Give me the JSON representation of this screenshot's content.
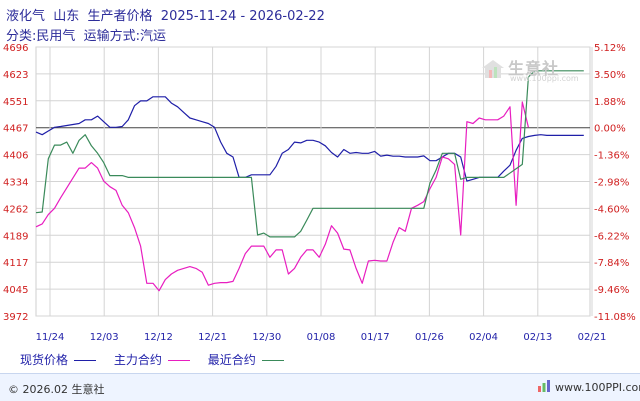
{
  "header": {
    "title": "液化气  山东  生产者价格  2025-11-24 - 2026-02-22",
    "subtitle": "分类:民用气  运输方式:汽运"
  },
  "watermark": {
    "text": "生意社",
    "url": "www.100ppi.com"
  },
  "legend": [
    {
      "label": "现货价格",
      "color": "#1f1fa8"
    },
    {
      "label": "主力合约",
      "color": "#e81ec0"
    },
    {
      "label": "最近合约",
      "color": "#3a8a5a"
    }
  ],
  "footer": {
    "copyright": "© 2026.02 生意社",
    "site": "www.100PPI.com"
  },
  "chart_data": {
    "type": "line",
    "title": "液化气  山东  生产者价格  2025-11-24 - 2026-02-22",
    "subtitle": "分类:民用气  运输方式:汽运",
    "x_ticks": [
      "11/24",
      "12/03",
      "12/12",
      "12/21",
      "12/30",
      "01/08",
      "01/17",
      "01/26",
      "02/04",
      "02/13",
      "02/21"
    ],
    "xlim": [
      "2025-11-24",
      "2026-02-22"
    ],
    "y_ticks": [
      3972,
      4045,
      4117,
      4189,
      4262,
      4334,
      4406,
      4467,
      4551,
      4623,
      4696
    ],
    "ylim": [
      3972,
      4696
    ],
    "y2_ticks": [
      "5.12%",
      "3.50%",
      "1.88%",
      "0.00%",
      "-1.36%",
      "-2.98%",
      "-4.60%",
      "-6.22%",
      "-7.84%",
      "-9.46%",
      "-11.08%"
    ],
    "grid": true,
    "series": [
      {
        "name": "现货价格",
        "color": "#1f1fa8",
        "points": [
          [
            "2025-11-24",
            4467
          ],
          [
            "2025-11-25",
            4460
          ],
          [
            "2025-11-26",
            4470
          ],
          [
            "2025-11-27",
            4480
          ],
          [
            "2025-11-28",
            4482
          ],
          [
            "2025-12-01",
            4490
          ],
          [
            "2025-12-02",
            4500
          ],
          [
            "2025-12-03",
            4500
          ],
          [
            "2025-12-04",
            4510
          ],
          [
            "2025-12-05",
            4495
          ],
          [
            "2025-12-06",
            4480
          ],
          [
            "2025-12-07",
            4480
          ],
          [
            "2025-12-08",
            4482
          ],
          [
            "2025-12-09",
            4500
          ],
          [
            "2025-12-10",
            4538
          ],
          [
            "2025-12-11",
            4551
          ],
          [
            "2025-12-12",
            4551
          ],
          [
            "2025-12-13",
            4562
          ],
          [
            "2025-12-14",
            4562
          ],
          [
            "2025-12-15",
            4562
          ],
          [
            "2025-12-16",
            4545
          ],
          [
            "2025-12-17",
            4535
          ],
          [
            "2025-12-18",
            4520
          ],
          [
            "2025-12-19",
            4505
          ],
          [
            "2025-12-20",
            4500
          ],
          [
            "2025-12-21",
            4495
          ],
          [
            "2025-12-22",
            4490
          ],
          [
            "2025-12-23",
            4480
          ],
          [
            "2025-12-24",
            4440
          ],
          [
            "2025-12-25",
            4410
          ],
          [
            "2025-12-26",
            4400
          ],
          [
            "2025-12-27",
            4345
          ],
          [
            "2025-12-28",
            4345
          ],
          [
            "2025-12-29",
            4352
          ],
          [
            "2025-12-30",
            4352
          ],
          [
            "2025-12-31",
            4352
          ],
          [
            "2026-01-01",
            4352
          ],
          [
            "2026-01-02",
            4375
          ],
          [
            "2026-01-03",
            4410
          ],
          [
            "2026-01-04",
            4420
          ],
          [
            "2026-01-05",
            4440
          ],
          [
            "2026-01-06",
            4438
          ],
          [
            "2026-01-07",
            4445
          ],
          [
            "2026-01-08",
            4445
          ],
          [
            "2026-01-09",
            4440
          ],
          [
            "2026-01-10",
            4430
          ],
          [
            "2026-01-11",
            4412
          ],
          [
            "2026-01-12",
            4400
          ],
          [
            "2026-01-13",
            4420
          ],
          [
            "2026-01-14",
            4410
          ],
          [
            "2026-01-15",
            4412
          ],
          [
            "2026-01-16",
            4410
          ],
          [
            "2026-01-17",
            4410
          ],
          [
            "2026-01-18",
            4415
          ],
          [
            "2026-01-19",
            4402
          ],
          [
            "2026-01-20",
            4405
          ],
          [
            "2026-01-21",
            4402
          ],
          [
            "2026-01-22",
            4402
          ],
          [
            "2026-01-23",
            4400
          ],
          [
            "2026-01-24",
            4400
          ],
          [
            "2026-01-25",
            4400
          ],
          [
            "2026-01-26",
            4403
          ],
          [
            "2026-01-27",
            4390
          ],
          [
            "2026-01-28",
            4390
          ],
          [
            "2026-01-29",
            4400
          ],
          [
            "2026-01-30",
            4410
          ],
          [
            "2026-01-31",
            4410
          ],
          [
            "2026-02-01",
            4400
          ],
          [
            "2026-02-02",
            4335
          ],
          [
            "2026-02-03",
            4340
          ],
          [
            "2026-02-04",
            4345
          ],
          [
            "2026-02-05",
            4345
          ],
          [
            "2026-02-06",
            4345
          ],
          [
            "2026-02-07",
            4345
          ],
          [
            "2026-02-08",
            4362
          ],
          [
            "2026-02-09",
            4378
          ],
          [
            "2026-02-10",
            4418
          ],
          [
            "2026-02-11",
            4450
          ],
          [
            "2026-02-12",
            4455
          ],
          [
            "2026-02-13",
            4458
          ],
          [
            "2026-02-14",
            4460
          ],
          [
            "2026-02-15",
            4458
          ],
          [
            "2026-02-16",
            4458
          ],
          [
            "2026-02-17",
            4458
          ],
          [
            "2026-02-18",
            4458
          ],
          [
            "2026-02-19",
            4458
          ],
          [
            "2026-02-20",
            4458
          ],
          [
            "2026-02-21",
            4458
          ]
        ]
      },
      {
        "name": "主力合约",
        "color": "#e81ec0",
        "points": [
          [
            "2025-11-24",
            4212
          ],
          [
            "2025-11-25",
            4220
          ],
          [
            "2025-11-26",
            4245
          ],
          [
            "2025-11-27",
            4262
          ],
          [
            "2025-11-28",
            4290
          ],
          [
            "2025-12-01",
            4370
          ],
          [
            "2025-12-02",
            4370
          ],
          [
            "2025-12-03",
            4385
          ],
          [
            "2025-12-04",
            4370
          ],
          [
            "2025-12-05",
            4335
          ],
          [
            "2025-12-06",
            4320
          ],
          [
            "2025-12-07",
            4310
          ],
          [
            "2025-12-08",
            4270
          ],
          [
            "2025-12-09",
            4250
          ],
          [
            "2025-12-10",
            4210
          ],
          [
            "2025-12-11",
            4160
          ],
          [
            "2025-12-12",
            4060
          ],
          [
            "2025-12-13",
            4060
          ],
          [
            "2025-12-14",
            4040
          ],
          [
            "2025-12-15",
            4070
          ],
          [
            "2025-12-16",
            4085
          ],
          [
            "2025-12-17",
            4095
          ],
          [
            "2025-12-18",
            4100
          ],
          [
            "2025-12-19",
            4105
          ],
          [
            "2025-12-20",
            4100
          ],
          [
            "2025-12-21",
            4090
          ],
          [
            "2025-12-22",
            4055
          ],
          [
            "2025-12-23",
            4060
          ],
          [
            "2025-12-24",
            4062
          ],
          [
            "2025-12-25",
            4062
          ],
          [
            "2025-12-26",
            4065
          ],
          [
            "2025-12-27",
            4100
          ],
          [
            "2025-12-28",
            4140
          ],
          [
            "2025-12-29",
            4160
          ],
          [
            "2025-12-30",
            4160
          ],
          [
            "2025-12-31",
            4160
          ],
          [
            "2026-01-01",
            4130
          ],
          [
            "2026-01-02",
            4150
          ],
          [
            "2026-01-03",
            4150
          ],
          [
            "2026-01-04",
            4085
          ],
          [
            "2026-01-05",
            4100
          ],
          [
            "2026-01-06",
            4130
          ],
          [
            "2026-01-07",
            4150
          ],
          [
            "2026-01-08",
            4150
          ],
          [
            "2026-01-09",
            4130
          ],
          [
            "2026-01-10",
            4165
          ],
          [
            "2026-01-11",
            4215
          ],
          [
            "2026-01-12",
            4195
          ],
          [
            "2026-01-13",
            4152
          ],
          [
            "2026-01-14",
            4150
          ],
          [
            "2026-01-15",
            4100
          ],
          [
            "2026-01-16",
            4060
          ],
          [
            "2026-01-17",
            4120
          ],
          [
            "2026-01-18",
            4122
          ],
          [
            "2026-01-19",
            4120
          ],
          [
            "2026-01-20",
            4120
          ],
          [
            "2026-01-21",
            4170
          ],
          [
            "2026-01-22",
            4210
          ],
          [
            "2026-01-23",
            4200
          ],
          [
            "2026-01-24",
            4262
          ],
          [
            "2026-01-25",
            4270
          ],
          [
            "2026-01-26",
            4280
          ],
          [
            "2026-01-27",
            4315
          ],
          [
            "2026-01-28",
            4345
          ],
          [
            "2026-01-29",
            4400
          ],
          [
            "2026-01-30",
            4395
          ],
          [
            "2026-01-31",
            4380
          ],
          [
            "2026-02-01",
            4190
          ],
          [
            "2026-02-02",
            4495
          ],
          [
            "2026-02-03",
            4490
          ],
          [
            "2026-02-04",
            4505
          ],
          [
            "2026-02-05",
            4500
          ],
          [
            "2026-02-06",
            4500
          ],
          [
            "2026-02-07",
            4500
          ],
          [
            "2026-02-08",
            4510
          ],
          [
            "2026-02-09",
            4535
          ],
          [
            "2026-02-10",
            4270
          ],
          [
            "2026-02-11",
            4548
          ],
          [
            "2026-02-12",
            4480
          ]
        ]
      },
      {
        "name": "最近合约",
        "color": "#3a8a5a",
        "points": [
          [
            "2025-11-24",
            4250
          ],
          [
            "2025-11-25",
            4252
          ],
          [
            "2025-11-26",
            4395
          ],
          [
            "2025-11-27",
            4432
          ],
          [
            "2025-11-28",
            4432
          ],
          [
            "2025-11-29",
            4440
          ],
          [
            "2025-11-30",
            4410
          ],
          [
            "2025-12-01",
            4445
          ],
          [
            "2025-12-02",
            4460
          ],
          [
            "2025-12-03",
            4430
          ],
          [
            "2025-12-04",
            4410
          ],
          [
            "2025-12-05",
            4385
          ],
          [
            "2025-12-06",
            4350
          ],
          [
            "2025-12-07",
            4350
          ],
          [
            "2025-12-08",
            4350
          ],
          [
            "2025-12-09",
            4345
          ],
          [
            "2025-12-28",
            4345
          ],
          [
            "2025-12-29",
            4345
          ],
          [
            "2025-12-30",
            4190
          ],
          [
            "2025-12-31",
            4195
          ],
          [
            "2026-01-01",
            4185
          ],
          [
            "2026-01-05",
            4185
          ],
          [
            "2026-01-06",
            4200
          ],
          [
            "2026-01-07",
            4230
          ],
          [
            "2026-01-08",
            4262
          ],
          [
            "2026-01-15",
            4262
          ],
          [
            "2026-01-24",
            4262
          ],
          [
            "2026-01-25",
            4262
          ],
          [
            "2026-01-26",
            4262
          ],
          [
            "2026-01-27",
            4330
          ],
          [
            "2026-01-28",
            4365
          ],
          [
            "2026-01-29",
            4410
          ],
          [
            "2026-01-30",
            4410
          ],
          [
            "2026-01-31",
            4410
          ],
          [
            "2026-02-01",
            4340
          ],
          [
            "2026-02-02",
            4345
          ],
          [
            "2026-02-03",
            4345
          ],
          [
            "2026-02-04",
            4345
          ],
          [
            "2026-02-08",
            4345
          ],
          [
            "2026-02-11",
            4380
          ],
          [
            "2026-02-12",
            4615
          ],
          [
            "2026-02-13",
            4632
          ],
          [
            "2026-02-21",
            4632
          ]
        ]
      }
    ]
  }
}
